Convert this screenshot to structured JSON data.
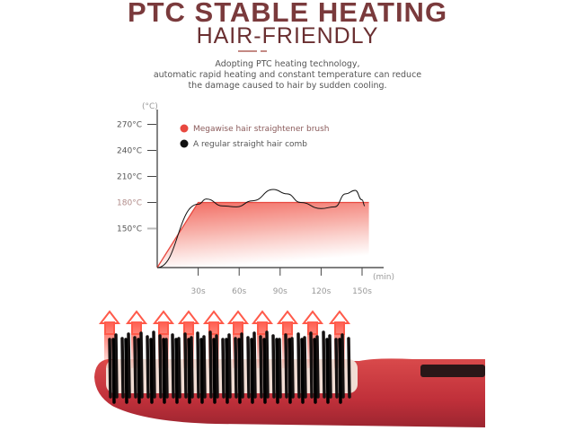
{
  "header": {
    "title": "PTC STABLE HEATING",
    "subtitle": "HAIR-FRIENDLY",
    "description": [
      "Adopting PTC heating technology,",
      "automatic rapid heating and constant temperature can reduce",
      "the damage caused to hair by sudden cooling."
    ]
  },
  "chart_data": {
    "type": "area",
    "xlabel": "(min)",
    "ylabel": "(°C)",
    "x_ticks": [
      {
        "value": 30,
        "label": "30s"
      },
      {
        "value": 60,
        "label": "60s"
      },
      {
        "value": 90,
        "label": "90s"
      },
      {
        "value": 120,
        "label": "120s"
      },
      {
        "value": 150,
        "label": "150s"
      }
    ],
    "y_ticks": [
      {
        "value": 150,
        "label": "150°C"
      },
      {
        "value": 180,
        "label": "180°C"
      },
      {
        "value": 210,
        "label": "210°C"
      },
      {
        "value": 240,
        "label": "240°C"
      },
      {
        "value": 270,
        "label": "270°C"
      }
    ],
    "xlim": [
      0,
      160
    ],
    "ylim": [
      105,
      290
    ],
    "legend_position": "top-left",
    "series": [
      {
        "name": "Megawise hair straightener brush",
        "color": "#e8483f",
        "points": [
          [
            0,
            105
          ],
          [
            30,
            180
          ],
          [
            155,
            180
          ]
        ]
      },
      {
        "name": "A regular straight hair comb",
        "color": "#111111",
        "points": [
          [
            0,
            105
          ],
          [
            30,
            178
          ],
          [
            36,
            184
          ],
          [
            48,
            176
          ],
          [
            58,
            175
          ],
          [
            70,
            182
          ],
          [
            85,
            195
          ],
          [
            95,
            190
          ],
          [
            105,
            180
          ],
          [
            120,
            173
          ],
          [
            130,
            175
          ],
          [
            138,
            190
          ],
          [
            145,
            194
          ],
          [
            150,
            183
          ],
          [
            152,
            176
          ]
        ]
      }
    ]
  },
  "colors": {
    "title": "#7a3a3c",
    "brush": "#c9363a",
    "glow": "#ff3b30"
  }
}
